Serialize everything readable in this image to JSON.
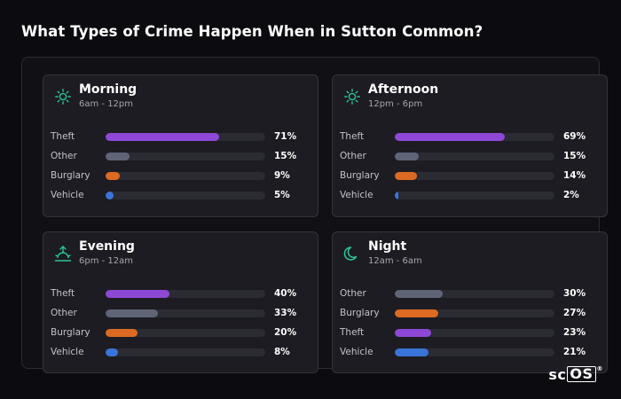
{
  "title": "What Types of Crime Happen When in Sutton Common?",
  "brand": {
    "sc": "sc",
    "os": "OS",
    "reg": "®"
  },
  "colors": {
    "Theft": "#8e48d6",
    "Other": "#5f6577",
    "Burglary": "#dd6a22",
    "Vehicle": "#3a74d8",
    "icon": "#2ec49a"
  },
  "chart_data": [
    {
      "type": "bar",
      "title": "Morning",
      "subtitle": "6am - 12pm",
      "icon": "sun-icon",
      "categories": [
        "Theft",
        "Other",
        "Burglary",
        "Vehicle"
      ],
      "values": [
        71,
        15,
        9,
        5
      ],
      "labels": [
        "71%",
        "15%",
        "9%",
        "5%"
      ],
      "unit": "%",
      "xlim": [
        0,
        100
      ]
    },
    {
      "type": "bar",
      "title": "Afternoon",
      "subtitle": "12pm - 6pm",
      "icon": "sun-icon",
      "categories": [
        "Theft",
        "Other",
        "Burglary",
        "Vehicle"
      ],
      "values": [
        69,
        15,
        14,
        2
      ],
      "labels": [
        "69%",
        "15%",
        "14%",
        "2%"
      ],
      "unit": "%",
      "xlim": [
        0,
        100
      ]
    },
    {
      "type": "bar",
      "title": "Evening",
      "subtitle": "6pm - 12am",
      "icon": "sunset-icon",
      "categories": [
        "Theft",
        "Other",
        "Burglary",
        "Vehicle"
      ],
      "values": [
        40,
        33,
        20,
        8
      ],
      "labels": [
        "40%",
        "33%",
        "20%",
        "8%"
      ],
      "unit": "%",
      "xlim": [
        0,
        100
      ]
    },
    {
      "type": "bar",
      "title": "Night",
      "subtitle": "12am - 6am",
      "icon": "moon-icon",
      "categories": [
        "Other",
        "Burglary",
        "Theft",
        "Vehicle"
      ],
      "values": [
        30,
        27,
        23,
        21
      ],
      "labels": [
        "30%",
        "27%",
        "23%",
        "21%"
      ],
      "unit": "%",
      "xlim": [
        0,
        100
      ]
    }
  ]
}
